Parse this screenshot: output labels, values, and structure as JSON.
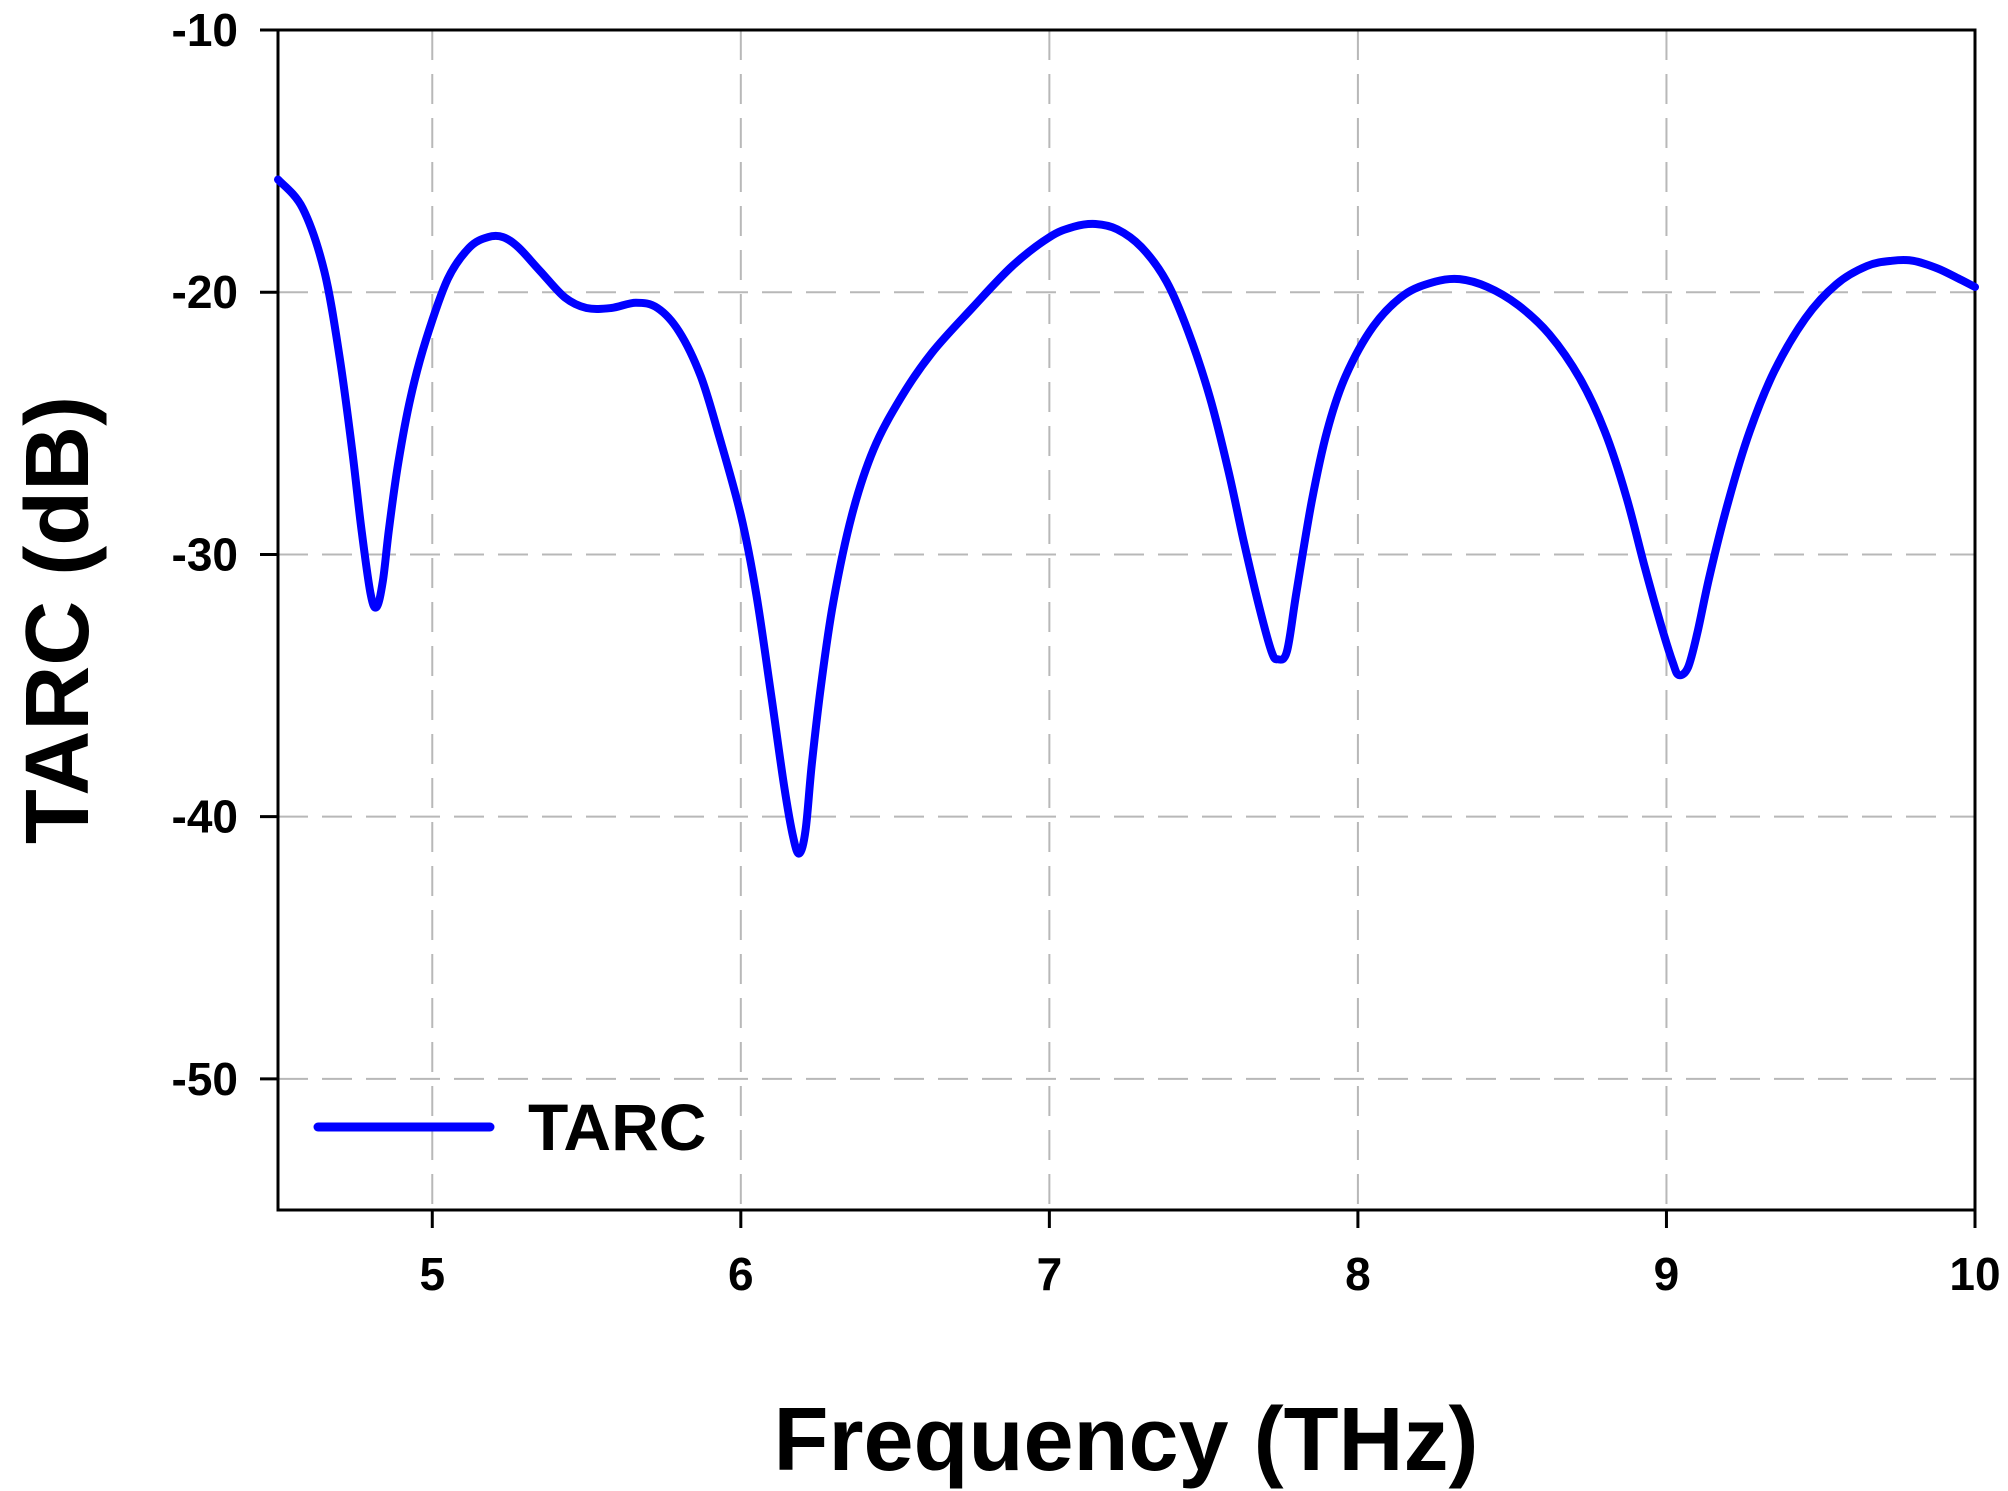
{
  "chart_data": {
    "type": "line",
    "xlabel": "Frequency (THz)",
    "ylabel": "TARC (dB)",
    "xlim": [
      4.5,
      10
    ],
    "ylim": [
      -55,
      -10
    ],
    "xticks": [
      "5",
      "6",
      "7",
      "8",
      "9",
      "10"
    ],
    "yticks": [
      "-10",
      "-20",
      "-30",
      "-40",
      "-50"
    ],
    "grid": true,
    "legend_position": "bottom-left",
    "series": [
      {
        "name": "TARC",
        "color": "#0000ff",
        "points": [
          [
            4.5,
            -15.7
          ],
          [
            4.58,
            -16.8
          ],
          [
            4.65,
            -19.2
          ],
          [
            4.7,
            -22.5
          ],
          [
            4.74,
            -26.0
          ],
          [
            4.77,
            -29.0
          ],
          [
            4.8,
            -31.5
          ],
          [
            4.82,
            -32.0
          ],
          [
            4.84,
            -31.0
          ],
          [
            4.86,
            -29.0
          ],
          [
            4.89,
            -26.5
          ],
          [
            4.93,
            -24.0
          ],
          [
            4.98,
            -21.8
          ],
          [
            5.05,
            -19.5
          ],
          [
            5.12,
            -18.3
          ],
          [
            5.18,
            -17.9
          ],
          [
            5.23,
            -17.9
          ],
          [
            5.28,
            -18.3
          ],
          [
            5.35,
            -19.2
          ],
          [
            5.43,
            -20.2
          ],
          [
            5.5,
            -20.6
          ],
          [
            5.58,
            -20.6
          ],
          [
            5.66,
            -20.4
          ],
          [
            5.73,
            -20.6
          ],
          [
            5.8,
            -21.5
          ],
          [
            5.87,
            -23.2
          ],
          [
            5.93,
            -25.5
          ],
          [
            6.0,
            -28.5
          ],
          [
            6.05,
            -31.5
          ],
          [
            6.1,
            -35.5
          ],
          [
            6.14,
            -38.8
          ],
          [
            6.17,
            -40.8
          ],
          [
            6.19,
            -41.4
          ],
          [
            6.21,
            -40.5
          ],
          [
            6.23,
            -38.0
          ],
          [
            6.26,
            -35.0
          ],
          [
            6.3,
            -31.8
          ],
          [
            6.36,
            -28.5
          ],
          [
            6.43,
            -26.0
          ],
          [
            6.52,
            -24.0
          ],
          [
            6.62,
            -22.3
          ],
          [
            6.75,
            -20.6
          ],
          [
            6.88,
            -19.0
          ],
          [
            7.0,
            -17.9
          ],
          [
            7.08,
            -17.5
          ],
          [
            7.15,
            -17.4
          ],
          [
            7.22,
            -17.6
          ],
          [
            7.3,
            -18.3
          ],
          [
            7.38,
            -19.6
          ],
          [
            7.45,
            -21.5
          ],
          [
            7.52,
            -24.0
          ],
          [
            7.58,
            -26.8
          ],
          [
            7.63,
            -29.5
          ],
          [
            7.68,
            -32.0
          ],
          [
            7.72,
            -33.7
          ],
          [
            7.74,
            -34.0
          ],
          [
            7.77,
            -33.7
          ],
          [
            7.8,
            -31.5
          ],
          [
            7.85,
            -28.0
          ],
          [
            7.9,
            -25.3
          ],
          [
            7.96,
            -23.2
          ],
          [
            8.05,
            -21.3
          ],
          [
            8.15,
            -20.1
          ],
          [
            8.25,
            -19.6
          ],
          [
            8.33,
            -19.5
          ],
          [
            8.42,
            -19.8
          ],
          [
            8.52,
            -20.5
          ],
          [
            8.62,
            -21.6
          ],
          [
            8.72,
            -23.3
          ],
          [
            8.8,
            -25.3
          ],
          [
            8.87,
            -27.8
          ],
          [
            8.93,
            -30.5
          ],
          [
            8.98,
            -32.6
          ],
          [
            9.02,
            -34.1
          ],
          [
            9.04,
            -34.6
          ],
          [
            9.07,
            -34.3
          ],
          [
            9.1,
            -33.0
          ],
          [
            9.14,
            -30.8
          ],
          [
            9.2,
            -28.0
          ],
          [
            9.27,
            -25.3
          ],
          [
            9.35,
            -23.0
          ],
          [
            9.45,
            -21.0
          ],
          [
            9.55,
            -19.7
          ],
          [
            9.65,
            -19.0
          ],
          [
            9.73,
            -18.8
          ],
          [
            9.8,
            -18.8
          ],
          [
            9.88,
            -19.1
          ],
          [
            9.95,
            -19.5
          ],
          [
            10.0,
            -19.8
          ]
        ]
      }
    ]
  }
}
